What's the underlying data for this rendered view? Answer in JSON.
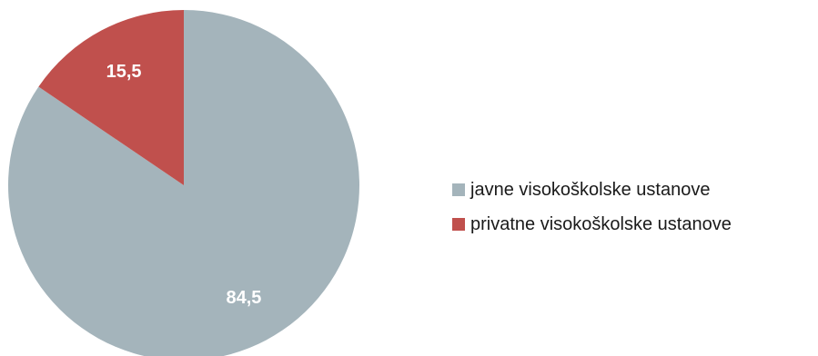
{
  "chart_data": {
    "type": "pie",
    "categories": [
      "javne visokoškolske ustanove",
      "privatne visokoškolske ustanove"
    ],
    "values": [
      84.5,
      15.5
    ],
    "value_labels": [
      "84,5",
      "15,5"
    ],
    "colors": [
      "#a4b4bb",
      "#c0504d"
    ],
    "legend_position": "right"
  }
}
